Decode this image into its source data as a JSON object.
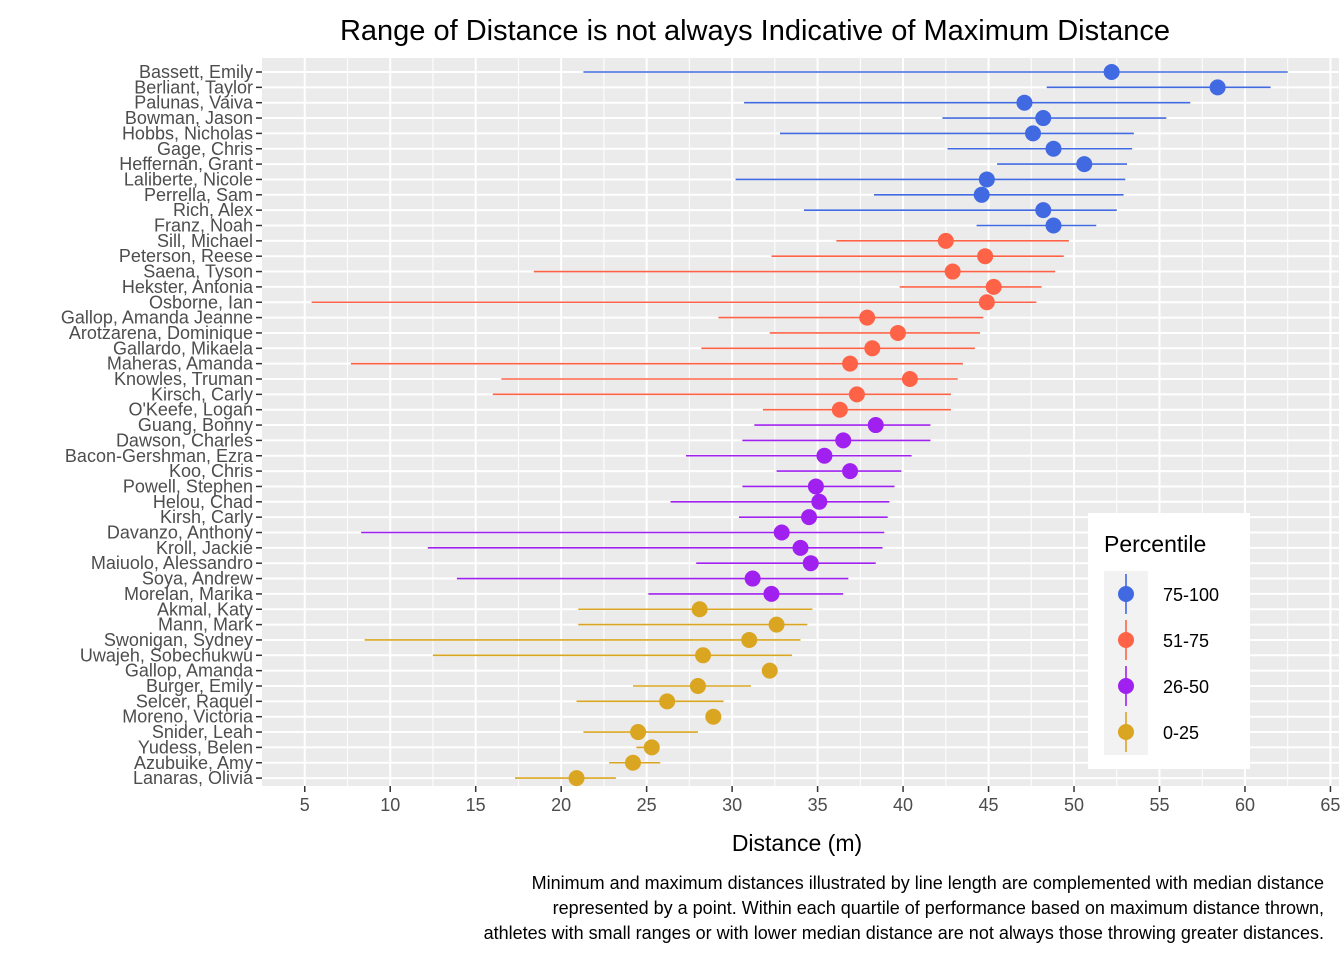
{
  "chart_data": {
    "type": "scatter",
    "title": "Range of Distance is not always Indicative of Maximum Distance",
    "xlabel": "Distance (m)",
    "ylabel": "",
    "xlim": [
      2.5,
      65.5
    ],
    "xticks": [
      "5",
      "10",
      "15",
      "20",
      "25",
      "30",
      "35",
      "40",
      "45",
      "50",
      "55",
      "60",
      "65"
    ],
    "grid": true,
    "caption": [
      "Minimum and maximum distances illustrated by line length are complemented with median distance",
      "represented by a point. Within each quartile of performance based on maximum distance thrown,",
      "athletes with small ranges or with lower median distance are not always those throwing greater distances."
    ],
    "legend": {
      "title": "Percentile",
      "position": "bottom-right",
      "entries": [
        {
          "key": "75-100",
          "label": "75-100",
          "color": "#4169E1"
        },
        {
          "key": "51-75",
          "label": "51-75",
          "color": "#FF6347"
        },
        {
          "key": "26-50",
          "label": "26-50",
          "color": "#A020F0"
        },
        {
          "key": "0-25",
          "label": "0-25",
          "color": "#DAA520"
        }
      ]
    },
    "athletes": [
      {
        "name": "Bassett, Emily",
        "min": 21.3,
        "median": 52.2,
        "max": 62.5,
        "group": "75-100"
      },
      {
        "name": "Berliant, Taylor",
        "min": 48.4,
        "median": 58.4,
        "max": 61.5,
        "group": "75-100"
      },
      {
        "name": "Palunas, Vaiva",
        "min": 30.7,
        "median": 47.1,
        "max": 56.8,
        "group": "75-100"
      },
      {
        "name": "Bowman, Jason",
        "min": 42.3,
        "median": 48.2,
        "max": 55.4,
        "group": "75-100"
      },
      {
        "name": "Hobbs, Nicholas",
        "min": 32.8,
        "median": 47.6,
        "max": 53.5,
        "group": "75-100"
      },
      {
        "name": "Gage, Chris",
        "min": 42.6,
        "median": 48.8,
        "max": 53.4,
        "group": "75-100"
      },
      {
        "name": "Heffernan, Grant",
        "min": 45.5,
        "median": 50.6,
        "max": 53.1,
        "group": "75-100"
      },
      {
        "name": "Laliberte, Nicole",
        "min": 30.2,
        "median": 44.9,
        "max": 53.0,
        "group": "75-100"
      },
      {
        "name": "Perrella, Sam",
        "min": 38.3,
        "median": 44.6,
        "max": 52.9,
        "group": "75-100"
      },
      {
        "name": "Rich, Alex",
        "min": 34.2,
        "median": 48.2,
        "max": 52.5,
        "group": "75-100"
      },
      {
        "name": "Franz, Noah",
        "min": 44.3,
        "median": 48.8,
        "max": 51.3,
        "group": "75-100"
      },
      {
        "name": "Sill, Michael",
        "min": 36.1,
        "median": 42.5,
        "max": 49.7,
        "group": "51-75"
      },
      {
        "name": "Peterson, Reese",
        "min": 32.3,
        "median": 44.8,
        "max": 49.4,
        "group": "51-75"
      },
      {
        "name": "Saena, Tyson",
        "min": 18.4,
        "median": 42.9,
        "max": 48.9,
        "group": "51-75"
      },
      {
        "name": "Hekster, Antonia",
        "min": 39.8,
        "median": 45.3,
        "max": 48.1,
        "group": "51-75"
      },
      {
        "name": "Osborne, Ian",
        "min": 5.4,
        "median": 44.9,
        "max": 47.8,
        "group": "51-75"
      },
      {
        "name": "Gallop, Amanda Jeanne",
        "min": 29.2,
        "median": 37.9,
        "max": 44.7,
        "group": "51-75"
      },
      {
        "name": "Arotzarena, Dominique",
        "min": 32.2,
        "median": 39.7,
        "max": 44.5,
        "group": "51-75"
      },
      {
        "name": "Gallardo, Mikaela",
        "min": 28.2,
        "median": 38.2,
        "max": 44.2,
        "group": "51-75"
      },
      {
        "name": "Maheras, Amanda",
        "min": 7.7,
        "median": 36.9,
        "max": 43.5,
        "group": "51-75"
      },
      {
        "name": "Knowles, Truman",
        "min": 16.5,
        "median": 40.4,
        "max": 43.2,
        "group": "51-75"
      },
      {
        "name": "Kirsch, Carly",
        "min": 16.0,
        "median": 37.3,
        "max": 42.8,
        "group": "51-75"
      },
      {
        "name": "O'Keefe, Logan",
        "min": 31.8,
        "median": 36.3,
        "max": 42.8,
        "group": "51-75"
      },
      {
        "name": "Guang, Bonny",
        "min": 31.3,
        "median": 38.4,
        "max": 41.6,
        "group": "26-50"
      },
      {
        "name": "Dawson, Charles",
        "min": 30.6,
        "median": 36.5,
        "max": 41.6,
        "group": "26-50"
      },
      {
        "name": "Bacon-Gershman, Ezra",
        "min": 27.3,
        "median": 35.4,
        "max": 40.5,
        "group": "26-50"
      },
      {
        "name": "Koo, Chris",
        "min": 32.6,
        "median": 36.9,
        "max": 39.9,
        "group": "26-50"
      },
      {
        "name": "Powell, Stephen",
        "min": 30.6,
        "median": 34.9,
        "max": 39.5,
        "group": "26-50"
      },
      {
        "name": "Helou, Chad",
        "min": 26.4,
        "median": 35.1,
        "max": 39.2,
        "group": "26-50"
      },
      {
        "name": "Kirsh, Carly",
        "min": 30.4,
        "median": 34.5,
        "max": 39.1,
        "group": "26-50"
      },
      {
        "name": "Davanzo, Anthony",
        "min": 8.3,
        "median": 32.9,
        "max": 38.9,
        "group": "26-50"
      },
      {
        "name": "Kroll, Jackie",
        "min": 12.2,
        "median": 34.0,
        "max": 38.8,
        "group": "26-50"
      },
      {
        "name": "Maiuolo, Alessandro",
        "min": 27.9,
        "median": 34.6,
        "max": 38.4,
        "group": "26-50"
      },
      {
        "name": "Soya, Andrew",
        "min": 13.9,
        "median": 31.2,
        "max": 36.8,
        "group": "26-50"
      },
      {
        "name": "Morelan, Marika",
        "min": 25.1,
        "median": 32.3,
        "max": 36.5,
        "group": "26-50"
      },
      {
        "name": "Akmal, Katy",
        "min": 21.0,
        "median": 28.1,
        "max": 34.7,
        "group": "0-25"
      },
      {
        "name": "Mann, Mark",
        "min": 21.0,
        "median": 32.6,
        "max": 34.4,
        "group": "0-25"
      },
      {
        "name": "Swonigan, Sydney",
        "min": 8.5,
        "median": 31.0,
        "max": 34.0,
        "group": "0-25"
      },
      {
        "name": "Uwajeh, Sobechukwu",
        "min": 12.5,
        "median": 28.3,
        "max": 33.5,
        "group": "0-25"
      },
      {
        "name": "Gallop, Amanda",
        "min": 32.2,
        "median": 32.2,
        "max": 32.2,
        "group": "0-25"
      },
      {
        "name": "Burger, Emily",
        "min": 24.2,
        "median": 28.0,
        "max": 31.1,
        "group": "0-25"
      },
      {
        "name": "Selcer, Raquel",
        "min": 20.9,
        "median": 26.2,
        "max": 29.5,
        "group": "0-25"
      },
      {
        "name": "Moreno, Victoria",
        "min": 28.9,
        "median": 28.9,
        "max": 28.9,
        "group": "0-25"
      },
      {
        "name": "Snider, Leah",
        "min": 21.3,
        "median": 24.5,
        "max": 28.0,
        "group": "0-25"
      },
      {
        "name": "Yudess, Belen",
        "min": 24.4,
        "median": 25.3,
        "max": 25.4,
        "group": "0-25"
      },
      {
        "name": "Azubuike, Amy",
        "min": 22.8,
        "median": 24.2,
        "max": 25.8,
        "group": "0-25"
      },
      {
        "name": "Lanaras, Olivia",
        "min": 17.3,
        "median": 20.9,
        "max": 23.2,
        "group": "0-25"
      }
    ]
  }
}
